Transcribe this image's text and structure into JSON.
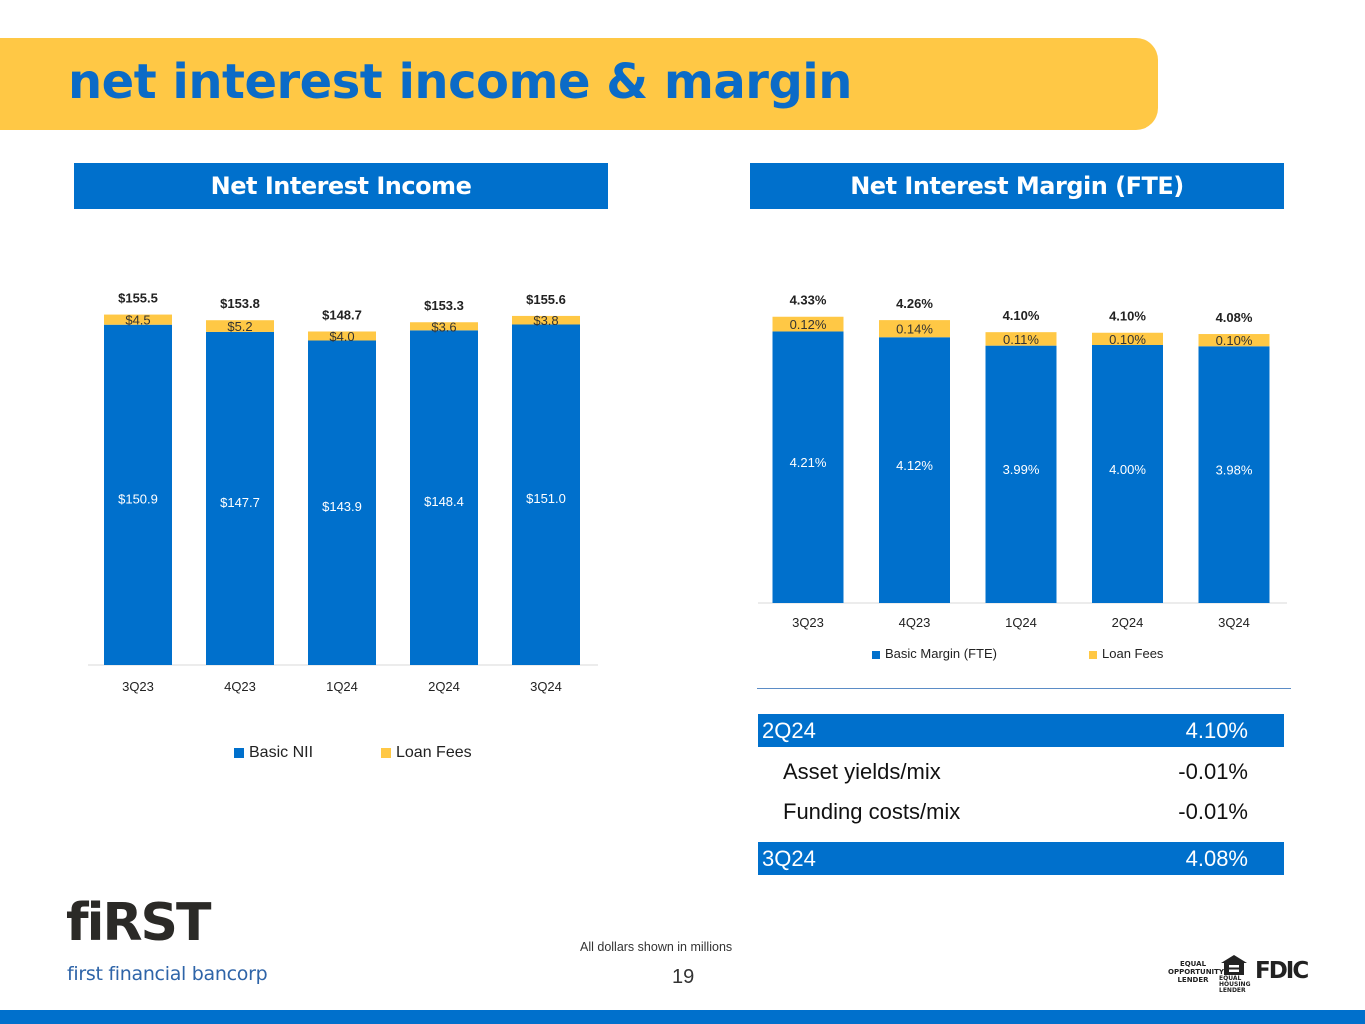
{
  "page": {
    "title": "net interest income & margin",
    "page_number": "19",
    "footnote": "All dollars shown in millions"
  },
  "colors": {
    "primary_blue": "#0070CC",
    "accent_yellow": "#FFC845",
    "title_blue": "#0B6BC7"
  },
  "brand": {
    "logo_word": "fiRST",
    "logo_subtitle": "first financial bancorp"
  },
  "badges": {
    "equal_opportunity_lender": "EQUAL OPPORTUNITY LENDER",
    "equal_housing_lender": "EQUAL HOUSING LENDER",
    "fdic": "FDIC"
  },
  "chart_data": [
    {
      "id": "nii",
      "type": "bar",
      "stacked": true,
      "title": "Net Interest Income",
      "categories": [
        "3Q23",
        "4Q23",
        "1Q24",
        "2Q24",
        "3Q24"
      ],
      "series": [
        {
          "name": "Basic NII",
          "values": [
            150.9,
            147.7,
            143.9,
            148.4,
            151.0
          ],
          "labels": [
            "$150.9",
            "$147.7",
            "$143.9",
            "$148.4",
            "$151.0"
          ],
          "color": "#0070CC"
        },
        {
          "name": "Loan Fees",
          "values": [
            4.5,
            5.2,
            4.0,
            3.6,
            3.8
          ],
          "labels": [
            "$4.5",
            "$5.2",
            "$4.0",
            "$3.6",
            "$3.8"
          ],
          "color": "#FFC845"
        }
      ],
      "totals": [
        155.5,
        153.8,
        148.7,
        153.3,
        155.6
      ],
      "total_labels": [
        "$155.5",
        "$153.8",
        "$148.7",
        "$153.3",
        "$155.6"
      ],
      "ylim": [
        0,
        160
      ],
      "legend": "bottom",
      "grid": false
    },
    {
      "id": "nim",
      "type": "bar",
      "stacked": true,
      "title": "Net Interest Margin (FTE)",
      "categories": [
        "3Q23",
        "4Q23",
        "1Q24",
        "2Q24",
        "3Q24"
      ],
      "series": [
        {
          "name": "Basic Margin (FTE)",
          "values": [
            4.21,
            4.12,
            3.99,
            4.0,
            3.98
          ],
          "labels": [
            "4.21%",
            "4.12%",
            "3.99%",
            "4.00%",
            "3.98%"
          ],
          "color": "#0070CC"
        },
        {
          "name": "Loan Fees",
          "values": [
            0.12,
            0.14,
            0.11,
            0.1,
            0.1
          ],
          "labels": [
            "0.12%",
            "0.14%",
            "0.11%",
            "0.10%",
            "0.10%"
          ],
          "color": "#FFC845"
        }
      ],
      "totals": [
        4.33,
        4.26,
        4.1,
        4.1,
        4.08
      ],
      "total_labels": [
        "4.33%",
        "4.26%",
        "4.10%",
        "4.10%",
        "4.08%"
      ],
      "ylim": [
        0,
        4.5
      ],
      "legend": "bottom",
      "grid": false
    }
  ],
  "nim_bridge": {
    "start": {
      "label": "2Q24",
      "value": "4.10%"
    },
    "items": [
      {
        "label": "Asset yields/mix",
        "value": "-0.01%"
      },
      {
        "label": "Funding costs/mix",
        "value": "-0.01%"
      }
    ],
    "end": {
      "label": "3Q24",
      "value": "4.08%"
    }
  }
}
